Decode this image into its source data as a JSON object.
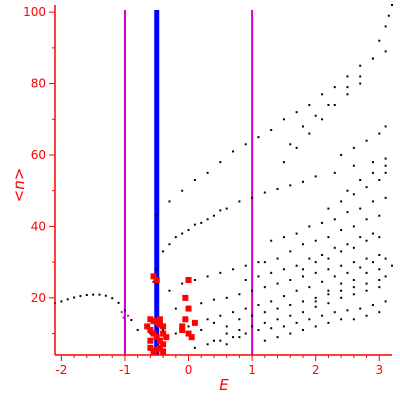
{
  "chart_data": {
    "type": "scatter",
    "title": "",
    "xlabel": "E",
    "ylabel": "<n>",
    "xlim": [
      -2.1,
      3.2
    ],
    "ylim": [
      4,
      102
    ],
    "grid": false,
    "axis_color": "#ff0000",
    "xticks": [
      -2,
      -1,
      0,
      1,
      2,
      3
    ],
    "yticks": [
      20,
      40,
      60,
      80,
      100
    ],
    "vertical_lines": [
      {
        "x": -1.0,
        "color": "#cc00cc"
      },
      {
        "x": -0.5,
        "color": "#0000ff"
      },
      {
        "x": 1.0,
        "color": "#cc00cc"
      }
    ],
    "series": [
      {
        "color": "#000000",
        "marker": "dot",
        "points": [
          [
            -2.1,
            18.5
          ],
          [
            -2.0,
            19.0
          ],
          [
            -1.9,
            19.6
          ],
          [
            -1.8,
            20.1
          ],
          [
            -1.7,
            20.5
          ],
          [
            -1.6,
            20.8
          ],
          [
            -1.5,
            20.9
          ],
          [
            -1.4,
            20.9
          ],
          [
            -1.3,
            20.6
          ],
          [
            -1.2,
            19.9
          ],
          [
            -1.1,
            18.6
          ],
          [
            -1.0,
            16.5
          ],
          [
            -0.9,
            13.8
          ],
          [
            -0.8,
            11.0
          ],
          [
            -0.55,
            24.5
          ],
          [
            -0.5,
            28
          ],
          [
            -0.4,
            33
          ],
          [
            -0.3,
            35
          ],
          [
            -0.2,
            37
          ],
          [
            -0.1,
            38
          ],
          [
            0.0,
            39
          ],
          [
            0.1,
            40.5
          ],
          [
            0.2,
            41
          ],
          [
            0.3,
            42
          ],
          [
            0.4,
            43
          ],
          [
            0.5,
            44.5
          ],
          [
            0.6,
            45
          ],
          [
            0.8,
            47
          ],
          [
            1.0,
            48
          ],
          [
            1.2,
            49.5
          ],
          [
            1.4,
            50.5
          ],
          [
            1.6,
            51.5
          ],
          [
            1.8,
            52.5
          ],
          [
            2.0,
            54
          ],
          [
            2.3,
            55
          ],
          [
            2.6,
            57
          ],
          [
            2.9,
            58
          ],
          [
            3.1,
            59
          ],
          [
            -0.5,
            43
          ],
          [
            -0.3,
            47
          ],
          [
            -0.1,
            50
          ],
          [
            0.1,
            53
          ],
          [
            0.3,
            55
          ],
          [
            0.5,
            58
          ],
          [
            0.7,
            61
          ],
          [
            0.9,
            63
          ],
          [
            1.1,
            65
          ],
          [
            1.3,
            67
          ],
          [
            1.5,
            70
          ],
          [
            1.7,
            72
          ],
          [
            1.9,
            74
          ],
          [
            2.1,
            77
          ],
          [
            2.3,
            79
          ],
          [
            2.5,
            82
          ],
          [
            2.7,
            85
          ],
          [
            2.9,
            87
          ],
          [
            3.1,
            89
          ],
          [
            1.6,
            63
          ],
          [
            1.8,
            68
          ],
          [
            2.0,
            71
          ],
          [
            2.2,
            74
          ],
          [
            2.5,
            79
          ],
          [
            2.7,
            82
          ],
          [
            2.9,
            87
          ],
          [
            3.0,
            92
          ],
          [
            3.1,
            96
          ],
          [
            3.15,
            99
          ],
          [
            3.2,
            102
          ],
          [
            1.5,
            58
          ],
          [
            1.7,
            62
          ],
          [
            1.9,
            66
          ],
          [
            2.1,
            70
          ],
          [
            2.3,
            74
          ],
          [
            2.5,
            77
          ],
          [
            2.7,
            80
          ],
          [
            -0.2,
            17
          ],
          [
            0.0,
            17.5
          ],
          [
            0.2,
            18.5
          ],
          [
            0.4,
            19.5
          ],
          [
            0.6,
            20
          ],
          [
            0.8,
            21
          ],
          [
            1.0,
            22
          ],
          [
            1.2,
            23
          ],
          [
            1.4,
            24
          ],
          [
            1.6,
            25
          ],
          [
            1.8,
            26
          ],
          [
            2.0,
            27
          ],
          [
            2.2,
            28
          ],
          [
            2.4,
            29
          ],
          [
            2.6,
            30
          ],
          [
            2.8,
            31
          ],
          [
            3.0,
            32
          ],
          [
            0.3,
            14
          ],
          [
            0.5,
            15
          ],
          [
            0.7,
            16
          ],
          [
            0.9,
            17
          ],
          [
            1.1,
            18
          ],
          [
            1.3,
            19
          ],
          [
            1.5,
            20.5
          ],
          [
            1.7,
            22
          ],
          [
            1.9,
            23
          ],
          [
            2.1,
            24.5
          ],
          [
            2.3,
            26
          ],
          [
            2.5,
            27
          ],
          [
            2.7,
            28.5
          ],
          [
            2.9,
            30
          ],
          [
            3.1,
            31
          ],
          [
            0.6,
            10
          ],
          [
            0.8,
            11
          ],
          [
            1.0,
            12
          ],
          [
            1.2,
            13
          ],
          [
            1.4,
            14
          ],
          [
            1.6,
            15
          ],
          [
            1.8,
            16
          ],
          [
            2.0,
            17.5
          ],
          [
            2.2,
            18.5
          ],
          [
            2.4,
            20
          ],
          [
            2.6,
            21
          ],
          [
            2.8,
            22
          ],
          [
            3.0,
            23
          ],
          [
            1.2,
            30
          ],
          [
            1.4,
            31
          ],
          [
            1.6,
            33
          ],
          [
            1.8,
            35
          ],
          [
            2.0,
            36
          ],
          [
            2.2,
            37
          ],
          [
            2.4,
            39
          ],
          [
            2.6,
            40
          ],
          [
            2.8,
            42
          ],
          [
            3.0,
            43
          ],
          [
            1.3,
            36
          ],
          [
            1.5,
            37
          ],
          [
            1.7,
            38
          ],
          [
            1.9,
            40
          ],
          [
            2.1,
            41
          ],
          [
            2.3,
            42
          ],
          [
            2.5,
            44
          ],
          [
            2.7,
            45
          ],
          [
            2.9,
            47
          ],
          [
            3.1,
            48
          ],
          [
            1.8,
            28
          ],
          [
            2.0,
            30
          ],
          [
            2.2,
            31
          ],
          [
            2.4,
            33
          ],
          [
            2.6,
            34
          ],
          [
            2.8,
            36
          ],
          [
            3.0,
            37
          ],
          [
            0.9,
            25
          ],
          [
            1.1,
            26
          ],
          [
            1.3,
            27
          ],
          [
            1.5,
            28
          ],
          [
            1.7,
            29
          ],
          [
            1.9,
            31
          ],
          [
            2.1,
            32
          ],
          [
            2.3,
            34
          ],
          [
            2.5,
            35
          ],
          [
            2.7,
            37
          ],
          [
            2.9,
            38
          ],
          [
            2.0,
            20
          ],
          [
            2.2,
            22
          ],
          [
            2.4,
            24
          ],
          [
            2.6,
            25
          ],
          [
            2.8,
            27
          ],
          [
            3.0,
            28
          ],
          [
            3.1,
            26
          ],
          [
            3.2,
            29
          ],
          [
            0.1,
            6
          ],
          [
            0.3,
            7
          ],
          [
            0.5,
            8
          ],
          [
            0.7,
            9
          ],
          [
            0.9,
            10
          ],
          [
            1.1,
            11
          ],
          [
            1.3,
            11.5
          ],
          [
            1.5,
            12
          ],
          [
            1.7,
            13
          ],
          [
            1.9,
            14
          ],
          [
            2.1,
            15
          ],
          [
            2.3,
            16
          ],
          [
            2.5,
            16.5
          ],
          [
            2.7,
            17
          ],
          [
            2.9,
            18
          ],
          [
            3.1,
            19
          ],
          [
            -0.6,
            10
          ],
          [
            -0.4,
            11
          ],
          [
            -0.2,
            10
          ],
          [
            0.0,
            12
          ],
          [
            0.2,
            11
          ],
          [
            0.4,
            13
          ],
          [
            0.6,
            12
          ],
          [
            0.8,
            14
          ],
          [
            1.0,
            15
          ],
          [
            1.2,
            16
          ],
          [
            1.4,
            17
          ],
          [
            1.6,
            18
          ],
          [
            1.8,
            19
          ],
          [
            2.0,
            19
          ],
          [
            2.2,
            21
          ],
          [
            2.4,
            22
          ],
          [
            2.6,
            23
          ],
          [
            2.8,
            24
          ],
          [
            3.0,
            25
          ],
          [
            -0.3,
            22
          ],
          [
            -0.1,
            24
          ],
          [
            0.1,
            25
          ],
          [
            0.3,
            26
          ],
          [
            0.5,
            27
          ],
          [
            0.7,
            28
          ],
          [
            0.9,
            29
          ],
          [
            1.1,
            30
          ],
          [
            0.4,
            8
          ],
          [
            0.6,
            7
          ],
          [
            0.8,
            9
          ],
          [
            1.2,
            8
          ],
          [
            1.4,
            9
          ],
          [
            1.6,
            10
          ],
          [
            1.8,
            11
          ],
          [
            2.0,
            12
          ],
          [
            2.2,
            13
          ],
          [
            2.4,
            14
          ],
          [
            2.6,
            14
          ],
          [
            2.8,
            15
          ],
          [
            3.0,
            16
          ],
          [
            2.2,
            45
          ],
          [
            2.4,
            47
          ],
          [
            2.6,
            49
          ],
          [
            2.8,
            51
          ],
          [
            3.0,
            53
          ],
          [
            3.1,
            55
          ],
          [
            2.4,
            60
          ],
          [
            2.6,
            62
          ],
          [
            2.8,
            64
          ],
          [
            3.0,
            66
          ],
          [
            3.1,
            68
          ],
          [
            2.5,
            50
          ],
          [
            2.7,
            53
          ],
          [
            2.9,
            55
          ],
          [
            3.1,
            57
          ]
        ]
      },
      {
        "color": "#ff0000",
        "marker": "square",
        "points": [
          [
            -0.6,
            14
          ],
          [
            -0.55,
            13.5
          ],
          [
            -0.5,
            13
          ],
          [
            -0.45,
            12.5
          ],
          [
            -0.4,
            12
          ],
          [
            -0.6,
            11
          ],
          [
            -0.55,
            10
          ],
          [
            -0.5,
            9
          ],
          [
            -0.45,
            8
          ],
          [
            -0.4,
            7
          ],
          [
            -0.6,
            6
          ],
          [
            -0.55,
            5
          ],
          [
            -0.5,
            5.5
          ],
          [
            -0.45,
            6
          ],
          [
            -0.4,
            5
          ],
          [
            -0.35,
            9
          ],
          [
            -0.65,
            12
          ],
          [
            -0.6,
            8
          ],
          [
            -0.55,
            26
          ],
          [
            -0.5,
            25
          ],
          [
            -0.45,
            14
          ],
          [
            -0.4,
            10
          ],
          [
            -0.1,
            12
          ],
          [
            -0.05,
            14
          ],
          [
            0.0,
            17
          ],
          [
            -0.05,
            20
          ],
          [
            0.0,
            25
          ],
          [
            0.0,
            10
          ],
          [
            0.05,
            9
          ],
          [
            -0.1,
            11
          ],
          [
            0.1,
            13
          ]
        ]
      },
      {
        "color": "#cc00cc",
        "marker": "dot",
        "points": [
          [
            -1.05,
            16
          ],
          [
            -1.0,
            15.5
          ],
          [
            -0.95,
            15
          ],
          [
            -1.02,
            14.5
          ]
        ]
      }
    ]
  }
}
